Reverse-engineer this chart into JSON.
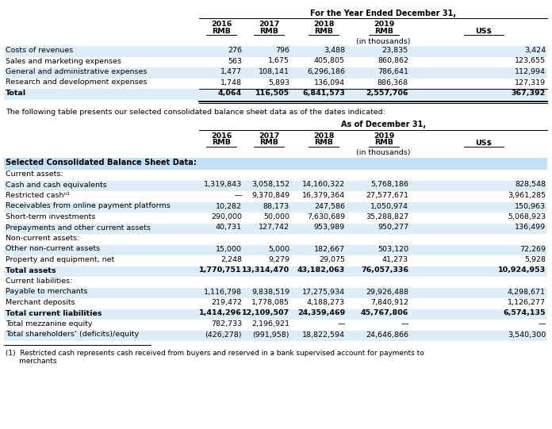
{
  "bg_color": "#ffffff",
  "header_bg": "#c5dff5",
  "alt_row_bg": "#ddeef9",
  "text_color": "#000000",
  "table1_header": "For the Year Ended December 31,",
  "table1_inthousands": "(in thousands)",
  "table1_rows": [
    [
      "Costs of revenues",
      "276",
      "796",
      "3,488",
      "23,835",
      "3,424"
    ],
    [
      "Sales and marketing expenses",
      "563",
      "1,675",
      "405,805",
      "860,862",
      "123,655"
    ],
    [
      "General and administrative expenses",
      "1,477",
      "108,141",
      "6,296,186",
      "786,641",
      "112,994"
    ],
    [
      "Research and development expenses",
      "1,748",
      "5,893",
      "136,094",
      "886,368",
      "127,319"
    ],
    [
      "Total",
      "4,064",
      "116,505",
      "6,841,573",
      "2,557,706",
      "367,392"
    ]
  ],
  "middle_text": "The following table presents our selected consolidated balance sheet data as of the dates indicated:",
  "table2_header": "As of December 31,",
  "table2_inthousands": "(in thousands)",
  "table2_section1": "Selected Consolidated Balance Sheet Data:",
  "table2_section2": "Current assets:",
  "table2_section3": "Non-current assets:",
  "table2_section4": "Current liabilities:",
  "table2_rows": [
    [
      "Cash and cash equivalents",
      "1,319,843",
      "3,058,152",
      "14,160,322",
      "5,768,186",
      "828,548"
    ],
    [
      "Restricted cashⁿ¹",
      "—",
      "9,370,849",
      "16,379,364",
      "27,577,671",
      "3,961,285"
    ],
    [
      "Receivables from online payment platforms",
      "10,282",
      "88,173",
      "247,586",
      "1,050,974",
      "150,963"
    ],
    [
      "Short-term investments",
      "290,000",
      "50,000",
      "7,630,689",
      "35,288,827",
      "5,068,923"
    ],
    [
      "Prepayments and other current assets",
      "40,731",
      "127,742",
      "953,989",
      "950,277",
      "136,499"
    ],
    [
      "Other non-current assets",
      "15,000",
      "5,000",
      "182,667",
      "503,120",
      "72,269"
    ],
    [
      "Property and equipment, net",
      "2,248",
      "9,279",
      "29,075",
      "41,273",
      "5,928"
    ],
    [
      "Total assets",
      "1,770,751",
      "13,314,470",
      "43,182,063",
      "76,057,336",
      "10,924,953"
    ],
    [
      "Payable to merchants",
      "1,116,798",
      "9,838,519",
      "17,275,934",
      "29,926,488",
      "4,298,671"
    ],
    [
      "Merchant deposits",
      "219,472",
      "1,778,085",
      "4,188,273",
      "7,840,912",
      "1,126,277"
    ],
    [
      "Total current liabilities",
      "1,414,296",
      "12,109,507",
      "24,359,469",
      "45,767,806",
      "6,574,135"
    ],
    [
      "Total mezzanine equity",
      "782,733",
      "2,196,921",
      "—",
      "—",
      "—"
    ],
    [
      "Total shareholders’ (deficits)/equity",
      "(426,278)",
      "(991,958)",
      "18,822,594",
      "24,646,866",
      "3,540,300"
    ]
  ],
  "footnote_line1": "(1)  Restricted cash represents cash received from buyers and reserved in a bank supervised account for payments to",
  "footnote_line2": "      merchants",
  "col_years": [
    "2016",
    "2017",
    "2018",
    "2019",
    ""
  ],
  "col_rmbs": [
    "RMB",
    "RMB",
    "RMB",
    "RMB",
    "US$"
  ]
}
